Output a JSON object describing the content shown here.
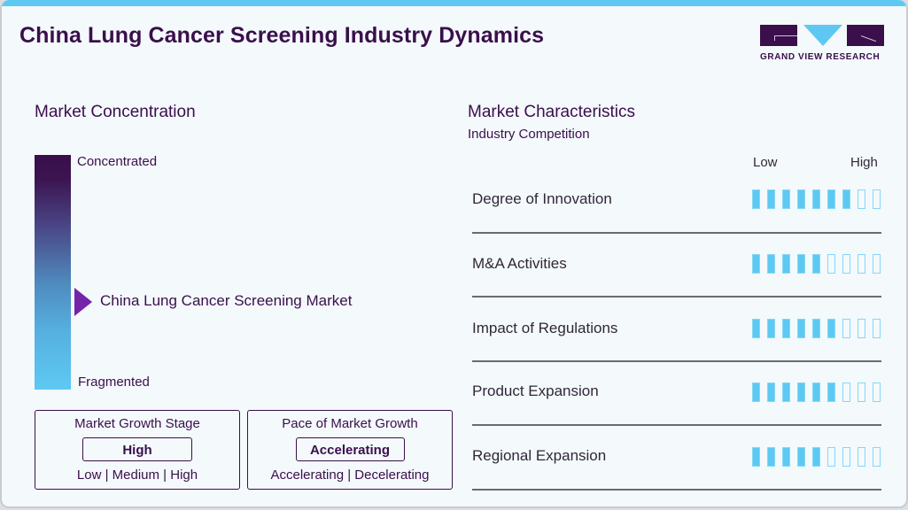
{
  "header": {
    "title": "China Lung Cancer Screening Industry Dynamics",
    "logo_text": "GRAND VIEW RESEARCH"
  },
  "concentration": {
    "heading": "Market Concentration",
    "top_label": "Concentrated",
    "bottom_label": "Fragmented",
    "marker_label": "China Lung Cancer Screening Market"
  },
  "growth_stage": {
    "title": "Market Growth Stage",
    "value": "High",
    "options": "Low | Medium | High"
  },
  "pace": {
    "title": "Pace of Market Growth",
    "value": "Accelerating",
    "options": "Accelerating | Decelerating"
  },
  "characteristics": {
    "heading": "Market Characteristics",
    "subheading": "Industry Competition",
    "scale_low": "Low",
    "scale_high": "High",
    "max": 9,
    "rows": [
      {
        "label": "Degree of Innovation",
        "value": 7
      },
      {
        "label": "M&A Activities",
        "value": 5
      },
      {
        "label": "Impact of Regulations",
        "value": 6
      },
      {
        "label": "Product Expansion",
        "value": 6
      },
      {
        "label": "Regional Expansion",
        "value": 5
      }
    ]
  },
  "colors": {
    "brand_dark": "#3a0f4b",
    "accent_blue": "#5dc9f3",
    "marker_purple": "#7525a8",
    "background": "#f4f9fc"
  }
}
